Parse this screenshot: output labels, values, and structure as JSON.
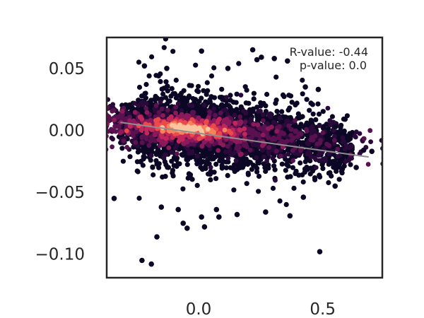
{
  "chart_data": {
    "type": "scatter",
    "style": "density-colored hexbin scatter with regression line",
    "title": "",
    "xlabel": "",
    "ylabel": "",
    "xlim": [
      -0.37,
      0.74
    ],
    "ylim": [
      -0.119,
      0.075
    ],
    "x_ticks": [
      {
        "value": 0.0,
        "label": "0.0"
      },
      {
        "value": 0.5,
        "label": "0.5"
      }
    ],
    "y_ticks": [
      {
        "value": 0.05,
        "label": "0.05"
      },
      {
        "value": 0.0,
        "label": "0.00"
      },
      {
        "value": -0.05,
        "label": "−0.05"
      },
      {
        "value": -0.1,
        "label": "−0.10"
      }
    ],
    "annotations": {
      "r_value": "R-value: -0.44",
      "p_value": "p-value: 0.0"
    },
    "regression_line": {
      "x": [
        -0.315,
        0.685
      ],
      "y": [
        0.0065,
        -0.0215
      ],
      "color": "#8f8f8f"
    },
    "density_core": {
      "x_range": [
        -0.315,
        0.62
      ],
      "y_center_at_x": [
        [
          -0.3,
          0.005
        ],
        [
          0.0,
          0.0
        ],
        [
          0.3,
          -0.006
        ],
        [
          0.6,
          -0.014
        ]
      ],
      "y_spread": 0.013,
      "peak": {
        "x": -0.04,
        "y": 0.002
      }
    },
    "outliers": [
      {
        "x": 0.012,
        "y": 0.064
      },
      {
        "x": 0.218,
        "y": 0.065
      },
      {
        "x": 0.253,
        "y": 0.059
      },
      {
        "x": 0.235,
        "y": 0.057
      },
      {
        "x": 0.305,
        "y": 0.058
      },
      {
        "x": 0.358,
        "y": 0.056
      },
      {
        "x": -0.218,
        "y": 0.052
      },
      {
        "x": -0.34,
        "y": -0.055
      },
      {
        "x": -0.15,
        "y": -0.062
      },
      {
        "x": -0.082,
        "y": -0.064
      },
      {
        "x": -0.062,
        "y": -0.075
      },
      {
        "x": -0.046,
        "y": -0.079
      },
      {
        "x": 0.012,
        "y": -0.07
      },
      {
        "x": 0.082,
        "y": -0.07
      },
      {
        "x": 0.072,
        "y": -0.064
      },
      {
        "x": 0.155,
        "y": -0.068
      },
      {
        "x": -0.168,
        "y": -0.086
      },
      {
        "x": -0.228,
        "y": -0.105
      },
      {
        "x": -0.19,
        "y": -0.108
      },
      {
        "x": 0.024,
        "y": -0.078
      },
      {
        "x": 0.488,
        "y": -0.098
      },
      {
        "x": 0.585,
        "y": -0.019
      },
      {
        "x": 0.665,
        "y": -0.016
      },
      {
        "x": 0.698,
        "y": -0.017
      },
      {
        "x": 0.635,
        "y": -0.03
      },
      {
        "x": 0.59,
        "y": 0.009
      },
      {
        "x": 0.552,
        "y": 0.003
      },
      {
        "x": 0.43,
        "y": 0.035
      },
      {
        "x": 0.482,
        "y": 0.033
      },
      {
        "x": 0.118,
        "y": 0.05
      },
      {
        "x": -0.128,
        "y": 0.05
      },
      {
        "x": 0.368,
        "y": -0.069
      },
      {
        "x": 0.27,
        "y": -0.066
      },
      {
        "x": 0.422,
        "y": -0.054
      },
      {
        "x": 0.55,
        "y": -0.045
      }
    ],
    "colormap": [
      "#0b0724",
      "#2a0a3a",
      "#5a114f",
      "#8c1a5a",
      "#c2275a",
      "#ea4a4a",
      "#f7835a",
      "#f9c4a0"
    ],
    "grid": false,
    "legend": "none"
  }
}
